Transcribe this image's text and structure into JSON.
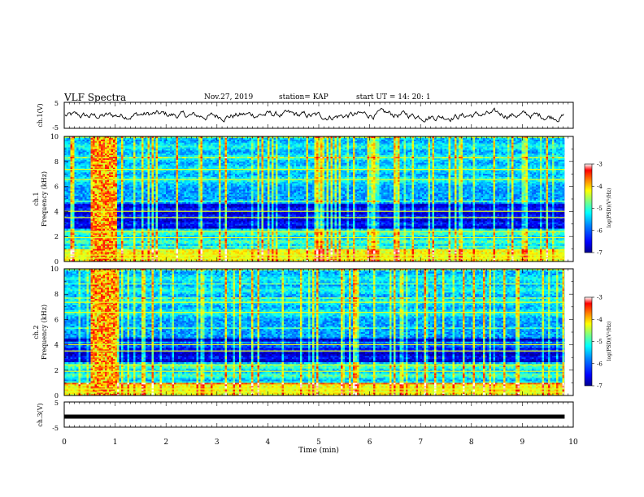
{
  "header": {
    "title": "VLF Spectra",
    "date": "Nov.27, 2019",
    "station": "station= KAP",
    "start": "start  UT =   14: 20: 1"
  },
  "colors": {
    "colormap": [
      "#00008f",
      "#0000ff",
      "#007fff",
      "#00ffff",
      "#7fff7f",
      "#ffff00",
      "#ff7f00",
      "#ff0000",
      "#ffffff"
    ],
    "trace": "#000000"
  },
  "chart_data": [
    {
      "type": "line",
      "panel": "ch1-waveform",
      "ylabel": "ch.1(V)",
      "ylim": [
        -5,
        5
      ],
      "yticks": [
        "5",
        "-5"
      ],
      "xlim": [
        0,
        9.83
      ],
      "description_series": "noisy waveform oscillating around 0 V within about ±1.5 V"
    },
    {
      "type": "heatmap",
      "panel": "ch1-spectrogram",
      "ylabel": "ch.1\nFrequency (kHz)",
      "ylim": [
        0,
        10
      ],
      "yticks": [
        "0",
        "2",
        "4",
        "6",
        "8",
        "10"
      ],
      "xlim": [
        0,
        9.83
      ],
      "colorbar": {
        "label": "log(PSD)(V²/Hz)",
        "range": [
          -7,
          -3
        ],
        "ticks": [
          "-3",
          "-4",
          "-5",
          "-6",
          "-7"
        ]
      }
    },
    {
      "type": "heatmap",
      "panel": "ch2-spectrogram",
      "ylabel": "ch.2\nFrequency (kHz)",
      "ylim": [
        0,
        10
      ],
      "yticks": [
        "0",
        "2",
        "4",
        "6",
        "8",
        "10"
      ],
      "xlim": [
        0,
        9.83
      ],
      "colorbar": {
        "label": "log(PSD)(V²/Hz)",
        "range": [
          -7,
          -3
        ],
        "ticks": [
          "-3",
          "-4",
          "-5",
          "-6",
          "-7"
        ]
      }
    },
    {
      "type": "line",
      "panel": "ch3-waveform",
      "ylabel": "ch.3(V)",
      "ylim": [
        -5,
        5
      ],
      "yticks": [
        "5",
        "-5"
      ],
      "xlim": [
        0,
        9.83
      ],
      "constant_value": -1
    }
  ],
  "xaxis": {
    "label": "Time  (min)",
    "range": [
      0,
      10
    ],
    "ticks": [
      "0",
      "1",
      "2",
      "3",
      "4",
      "5",
      "6",
      "7",
      "8",
      "9",
      "10"
    ]
  }
}
